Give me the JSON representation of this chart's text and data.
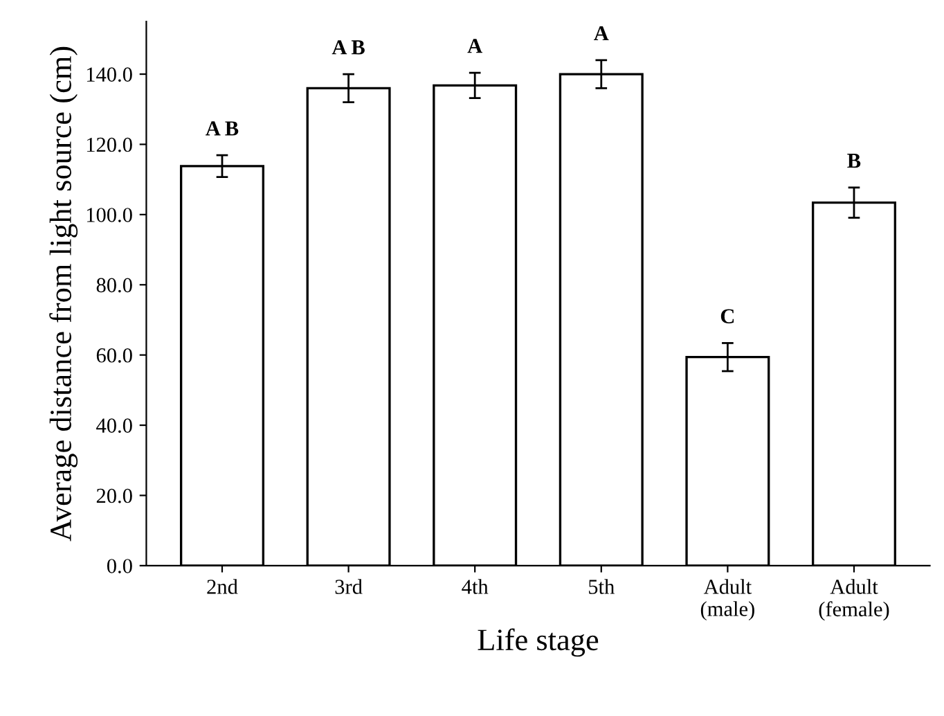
{
  "chart_data": {
    "type": "bar",
    "xlabel": "Life stage",
    "ylabel": "Average distance from light source (cm)",
    "categories": [
      "2nd",
      "3rd",
      "4th",
      "5th",
      "Adult\n(male)",
      "Adult\n(female)"
    ],
    "values": [
      113.8,
      136,
      136.8,
      140,
      59.4,
      103.4
    ],
    "errors": [
      3.1,
      4,
      3.6,
      4,
      4,
      4.3
    ],
    "color": "#ffffff",
    "ylim": [
      0,
      155
    ],
    "yticks": [
      {
        "value": 0,
        "label": "0.0"
      },
      {
        "value": 20,
        "label": "20.0"
      },
      {
        "value": 40,
        "label": "40.0"
      },
      {
        "value": 60,
        "label": "60.0"
      },
      {
        "value": 80,
        "label": "80.0"
      },
      {
        "value": 100,
        "label": "100.0"
      },
      {
        "value": 120,
        "label": "120.0"
      },
      {
        "value": 140,
        "label": "140.0"
      }
    ],
    "annotations": [
      {
        "text": "A B",
        "x": "2nd",
        "y": 116.9
      },
      {
        "text": "A B",
        "x": "3rd",
        "y": 140
      },
      {
        "text": "A",
        "x": "4th",
        "y": 140.4
      },
      {
        "text": "A",
        "x": "5th",
        "y": 144
      },
      {
        "text": "C",
        "x": "Adult\n(male)",
        "y": 63.4
      },
      {
        "text": "B",
        "x": "Adult\n(female)",
        "y": 107.7
      }
    ],
    "grid": false
  }
}
